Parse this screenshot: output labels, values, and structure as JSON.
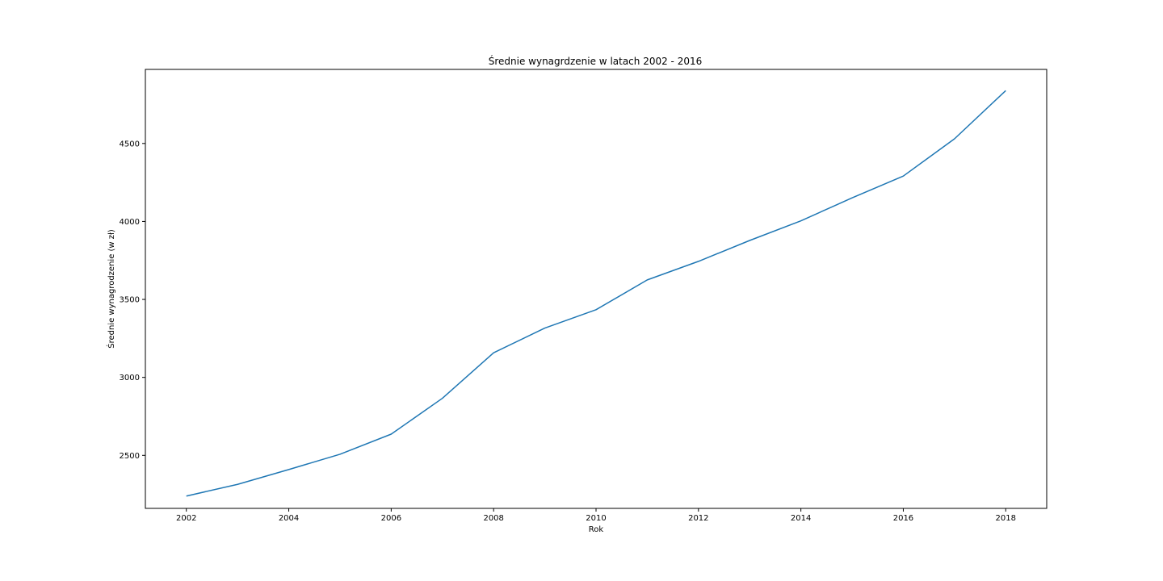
{
  "chart_data": {
    "type": "line",
    "title": "Średnie wynagrdzenie w latach 2002 - 2016",
    "xlabel": "Rok",
    "ylabel": "Średnie wynagrodzenie (w zł)",
    "x": [
      2002,
      2003,
      2004,
      2005,
      2006,
      2007,
      2008,
      2009,
      2010,
      2011,
      2012,
      2013,
      2014,
      2015,
      2016,
      2017,
      2018
    ],
    "series": [
      {
        "values": [
          2239,
          2314,
          2409,
          2507,
          2636,
          2866,
          3158,
          3316,
          3434,
          3625,
          3744,
          3878,
          4004,
          4151,
          4291,
          4530,
          4839
        ],
        "color": "#1f77b4"
      }
    ],
    "xlim": [
      2001.2,
      2018.8
    ],
    "ylim": [
      2160,
      4975
    ],
    "xticks": [
      2002,
      2004,
      2006,
      2008,
      2010,
      2012,
      2014,
      2016,
      2018
    ],
    "yticks": [
      2500,
      3000,
      3500,
      4000,
      4500
    ],
    "grid": false,
    "legend": false
  }
}
